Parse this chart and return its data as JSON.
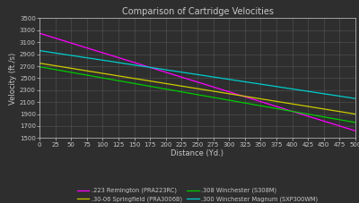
{
  "title": "Comparison of Cartridge Velocities",
  "xlabel": "Distance (Yd.)",
  "ylabel": "Velocity (ft./s)",
  "xlim": [
    0,
    500
  ],
  "ylim": [
    1500,
    3500
  ],
  "xticks": [
    0,
    25,
    50,
    75,
    100,
    125,
    150,
    175,
    200,
    225,
    250,
    275,
    300,
    325,
    350,
    375,
    400,
    425,
    450,
    475,
    500
  ],
  "yticks": [
    1500,
    1700,
    1900,
    2100,
    2300,
    2500,
    2700,
    2900,
    3100,
    3300,
    3500
  ],
  "background_color": "#2e2e2e",
  "grid_color": "#555555",
  "text_color": "#c8c8c8",
  "lines": [
    {
      "label": ".223 Remington (PRA223RC)",
      "color": "#ff00ff",
      "v0": 3250,
      "v500": 1620
    },
    {
      "label": ".30-06 Springfield (PRA3006B)",
      "color": "#cccc00",
      "v0": 2750,
      "v500": 1900
    },
    {
      "label": ".308 Winchester (S308M)",
      "color": "#00cc00",
      "v0": 2690,
      "v500": 1760
    },
    {
      "label": ".300 Winchester Magnum (SXP300WM)",
      "color": "#00cccc",
      "v0": 2960,
      "v500": 2160
    }
  ],
  "legend_ncol": 2,
  "figsize": [
    4.0,
    2.27
  ],
  "dpi": 100,
  "title_fontsize": 7.0,
  "axis_label_fontsize": 6.0,
  "tick_fontsize": 5.0,
  "legend_fontsize": 4.8
}
